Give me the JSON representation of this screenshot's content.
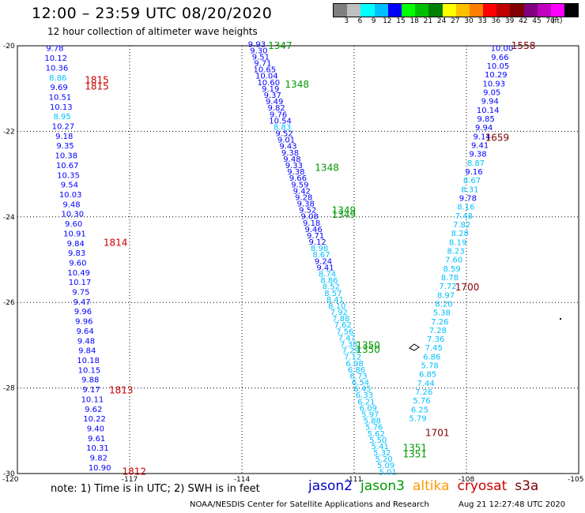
{
  "title": "12:00 – 23:59 UTC 08/20/2020",
  "subtitle": "12 hour collection of altimeter wave heights",
  "colorbar": {
    "colors": [
      "#7f7f7f",
      "#bfbfbf",
      "#00ffff",
      "#00bfff",
      "#0000ff",
      "#00ff00",
      "#00bf00",
      "#008000",
      "#ffff00",
      "#ffbf00",
      "#ff8000",
      "#ff0000",
      "#bf0000",
      "#800000",
      "#800080",
      "#bf00bf",
      "#ff00ff",
      "#000000"
    ],
    "labels": [
      "3",
      "6",
      "9",
      "12",
      "15",
      "18",
      "21",
      "24",
      "27",
      "30",
      "33",
      "36",
      "39",
      "42",
      "45",
      "70"
    ],
    "unit": "(ft)"
  },
  "axes": {
    "lon_labels": [
      "-120",
      "-117",
      "-114",
      "-111",
      "-108",
      "-105"
    ],
    "lat_labels": [
      "-20",
      "-22",
      "-24",
      "-26",
      "-28",
      "-30"
    ]
  },
  "satellite_colors": {
    "jason2": "#0000cc",
    "jason3": "#009900",
    "altika": "#ff9900",
    "cryosat": "#cc0000",
    "s3a": "#800000"
  },
  "tracks": [
    {
      "satellite": "jason2",
      "start": [
        -119.0,
        -20.05
      ],
      "end": [
        -117.8,
        -29.85
      ],
      "values": [
        "9.78",
        "10.12",
        "10.36",
        "8.86",
        "9.69",
        "10.51",
        "10.13",
        "8.95",
        "10.27",
        "9.18",
        "9.35",
        "10.38",
        "10.67",
        "10.35",
        "9.54",
        "10.03",
        "9.48",
        "10.30",
        "9.60",
        "10.91",
        "9.84",
        "9.83",
        "9.60",
        "10.49",
        "10.17",
        "9.75",
        "9.47",
        "9.96",
        "9.96",
        "9.64",
        "9.48",
        "9.84",
        "10.18",
        "10.15",
        "9.88",
        "9.17",
        "10.11",
        "9.62",
        "10.22",
        "9.40",
        "9.61",
        "10.31",
        "9.82",
        "10.90"
      ]
    },
    {
      "satellite": "jason2",
      "start": [
        -113.6,
        -19.95
      ],
      "end": [
        -110.1,
        -29.95
      ],
      "values": [
        "9.93",
        "9.30",
        "9.51",
        "9.71",
        "10.65",
        "10.04",
        "10.60",
        "9.19",
        "9.37",
        "9.49",
        "9.82",
        "9.76",
        "10.54",
        "8.83",
        "9.52",
        "9.01",
        "9.43",
        "9.38",
        "9.48",
        "9.33",
        "9.38",
        "9.66",
        "9.59",
        "9.42",
        "9.28",
        "9.38",
        "9.52",
        "9.08",
        "9.18",
        "9.46",
        "9.71",
        "9.12",
        "8.98",
        "8.67",
        "9.24",
        "9.41",
        "8.74",
        "8.86",
        "8.52",
        "8.57",
        "8.41",
        "8.10",
        "7.92",
        "7.88",
        "7.62",
        "7.56",
        "7.47",
        "7.38",
        "7.29",
        "7.12",
        "6.98",
        "6.86",
        "6.73",
        "6.54",
        "6.45",
        "6.33",
        "6.21",
        "6.09",
        "5.97",
        "5.88",
        "5.76",
        "5.62",
        "5.50",
        "5.41",
        "5.32",
        "5.20",
        "5.09",
        "5.01"
      ]
    },
    {
      "satellite": "jason2",
      "start": [
        -107.05,
        -20.05
      ],
      "end": [
        -109.3,
        -28.7
      ],
      "values": [
        "10.00",
        "9.66",
        "10.05",
        "10.29",
        "10.93",
        "9.05",
        "9.94",
        "10.14",
        "9.85",
        "9.94",
        "9.14",
        "9.41",
        "9.38",
        "8.87",
        "9.16",
        "8.67",
        "8.31",
        "9.78",
        "8.16",
        "7.48",
        "7.82",
        "8.28",
        "8.19",
        "8.23",
        "7.60",
        "8.59",
        "8.78",
        "7.72",
        "8.97",
        "8.20",
        "5.38",
        "7.26",
        "7.28",
        "7.36",
        "7.45",
        "6.86",
        "5.78",
        "6.85",
        "7.44",
        "7.26",
        "5.76",
        "6.25",
        "5.79"
      ]
    }
  ],
  "time_labels": [
    {
      "text": "1815",
      "sat": "cryosat",
      "lon": -118.2,
      "lat": -20.8
    },
    {
      "text": "1815",
      "sat": "cryosat",
      "lon": -118.2,
      "lat": -20.95
    },
    {
      "text": "1814",
      "sat": "cryosat",
      "lon": -117.7,
      "lat": -24.6
    },
    {
      "text": "1813",
      "sat": "cryosat",
      "lon": -117.55,
      "lat": -28.05
    },
    {
      "text": "1812",
      "sat": "cryosat",
      "lon": -117.2,
      "lat": -29.95
    },
    {
      "text": "1347",
      "sat": "jason3",
      "lon": -113.3,
      "lat": -20.0
    },
    {
      "text": "1348",
      "sat": "jason3",
      "lon": -112.85,
      "lat": -20.9
    },
    {
      "text": "1348",
      "sat": "jason3",
      "lon": -112.05,
      "lat": -22.85
    },
    {
      "text": "1349",
      "sat": "jason3",
      "lon": -111.6,
      "lat": -23.85
    },
    {
      "text": "1349",
      "sat": "jason3",
      "lon": -111.6,
      "lat": -23.95
    },
    {
      "text": "1350",
      "sat": "jason3",
      "lon": -110.95,
      "lat": -27.0
    },
    {
      "text": "1350",
      "sat": "jason3",
      "lon": -110.95,
      "lat": -27.1
    },
    {
      "text": "1351",
      "sat": "jason3",
      "lon": -109.7,
      "lat": -29.4
    },
    {
      "text": "1351",
      "sat": "jason3",
      "lon": -109.7,
      "lat": -29.55
    },
    {
      "text": "1558",
      "sat": "s3a",
      "lon": -106.8,
      "lat": -20.0
    },
    {
      "text": "1659",
      "sat": "s3a",
      "lon": -107.5,
      "lat": -22.15
    },
    {
      "text": "1700",
      "sat": "s3a",
      "lon": -108.3,
      "lat": -25.65
    },
    {
      "text": "1701",
      "sat": "s3a",
      "lon": -109.1,
      "lat": -29.05
    }
  ],
  "note": "note:  1) Time is in UTC;  2) SWH is in feet",
  "legend": [
    {
      "key": "jason2",
      "label": "jason2"
    },
    {
      "key": "jason3",
      "label": "jason3"
    },
    {
      "key": "altika",
      "label": "altika"
    },
    {
      "key": "cryosat",
      "label": "cryosat"
    },
    {
      "key": "s3a",
      "label": "s3a"
    }
  ],
  "credit": "NOAA/NESDIS Center for Satellite Applications and Research",
  "timestamp": "Aug 21 12:27:48 UTC 2020"
}
